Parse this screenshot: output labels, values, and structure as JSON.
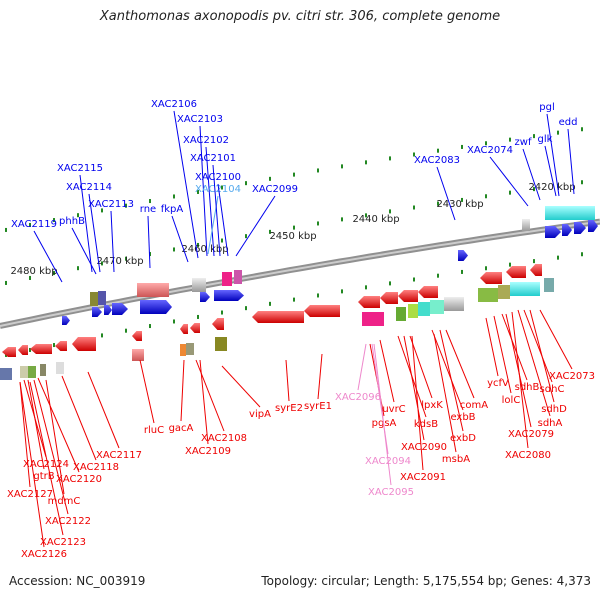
{
  "title": "Xanthomonas axonopodis pv. citri str. 306, complete genome",
  "footer": {
    "accession": "Accession: NC_003919",
    "summary": "Topology: circular; Length: 5,175,554 bp; Genes: 4,373"
  },
  "colors": {
    "forward_gene": "#0000ee",
    "reverse_gene": "#ee0000",
    "highlight_cyan": "#55aaee",
    "highlight_pink": "#ee88cc",
    "tick": "#228822",
    "backbone": "#909090"
  },
  "scale_labels": [
    "2420 kbp",
    "2430 kbp",
    "2440 kbp",
    "2450 kbp",
    "2460 kbp",
    "2470 kbp",
    "2480 kbp"
  ],
  "forward_labels": [
    "XAC2119",
    "phhB",
    "XAC2115",
    "XAC2114",
    "XAC2113",
    "rne",
    "XAC2106",
    "fkpA",
    "XAC2103",
    "XAC2102",
    "XAC2104",
    "XAC2101",
    "XAC2100",
    "XAC2099",
    "XAC2083",
    "XAC2074",
    "zwf",
    "glk",
    "pgl",
    "edd"
  ],
  "reverse_labels": [
    "XAC2124",
    "gtrB",
    "XAC2127",
    "XAC2120",
    "XAC2118",
    "mdmC",
    "XAC2122",
    "XAC2123",
    "XAC2126",
    "XAC2117",
    "rluC",
    "gacA",
    "XAC2108",
    "XAC2109",
    "vipA",
    "syrE2",
    "syrE1",
    "XAC2096",
    "pgsA",
    "uvrC",
    "XAC2094",
    "XAC2095",
    "kdsB",
    "XAC2090",
    "lpxK",
    "XAC2091",
    "exbB",
    "exbD",
    "comA",
    "msbA",
    "ycfV",
    "lolC",
    "sdhB",
    "XAC2079",
    "sdhC",
    "sdhA",
    "sdhD",
    "XAC2073",
    "XAC2080"
  ]
}
